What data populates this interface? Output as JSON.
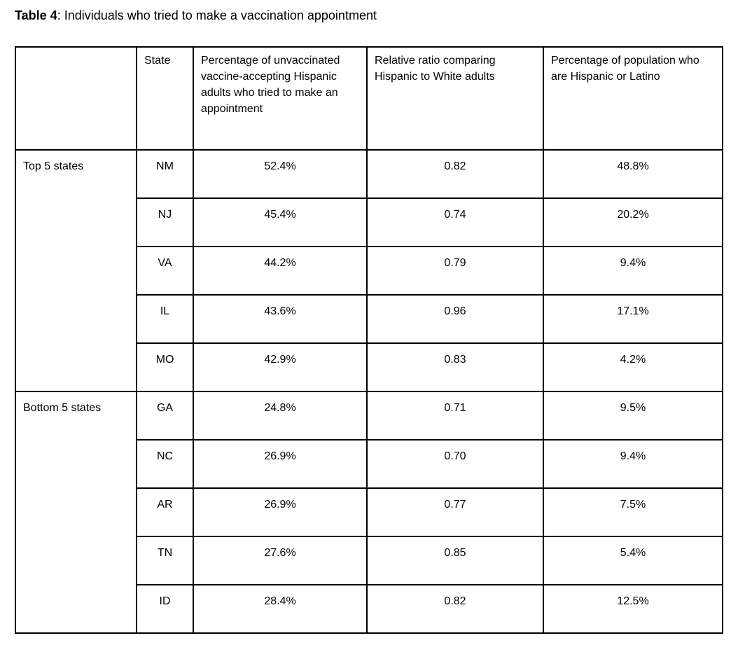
{
  "title": {
    "label": "Table 4",
    "text": ": Individuals who tried to make a vaccination appointment"
  },
  "colors": {
    "background": "#ffffff",
    "border": "#000000",
    "text": "#000000"
  },
  "table": {
    "columns": {
      "group": "",
      "state": "State",
      "pct": "Percentage of unvaccinated vaccine-accepting Hispanic adults who tried to make an appointment",
      "ratio": "Relative ratio comparing Hispanic to White adults",
      "pop": "Percentage of population who are Hispanic or Latino"
    },
    "groups": [
      {
        "label": "Top 5 states",
        "rows": [
          {
            "state": "NM",
            "pct": "52.4%",
            "ratio": "0.82",
            "pop": "48.8%"
          },
          {
            "state": "NJ",
            "pct": "45.4%",
            "ratio": "0.74",
            "pop": "20.2%"
          },
          {
            "state": "VA",
            "pct": "44.2%",
            "ratio": "0.79",
            "pop": "9.4%"
          },
          {
            "state": "IL",
            "pct": "43.6%",
            "ratio": "0.96",
            "pop": "17.1%"
          },
          {
            "state": "MO",
            "pct": "42.9%",
            "ratio": "0.83",
            "pop": "4.2%"
          }
        ]
      },
      {
        "label": "Bottom 5 states",
        "rows": [
          {
            "state": "GA",
            "pct": "24.8%",
            "ratio": "0.71",
            "pop": "9.5%"
          },
          {
            "state": "NC",
            "pct": "26.9%",
            "ratio": "0.70",
            "pop": "9.4%"
          },
          {
            "state": "AR",
            "pct": "26.9%",
            "ratio": "0.77",
            "pop": "7.5%"
          },
          {
            "state": "TN",
            "pct": "27.6%",
            "ratio": "0.85",
            "pop": "5.4%"
          },
          {
            "state": "ID",
            "pct": "28.4%",
            "ratio": "0.82",
            "pop": "12.5%"
          }
        ]
      }
    ]
  }
}
